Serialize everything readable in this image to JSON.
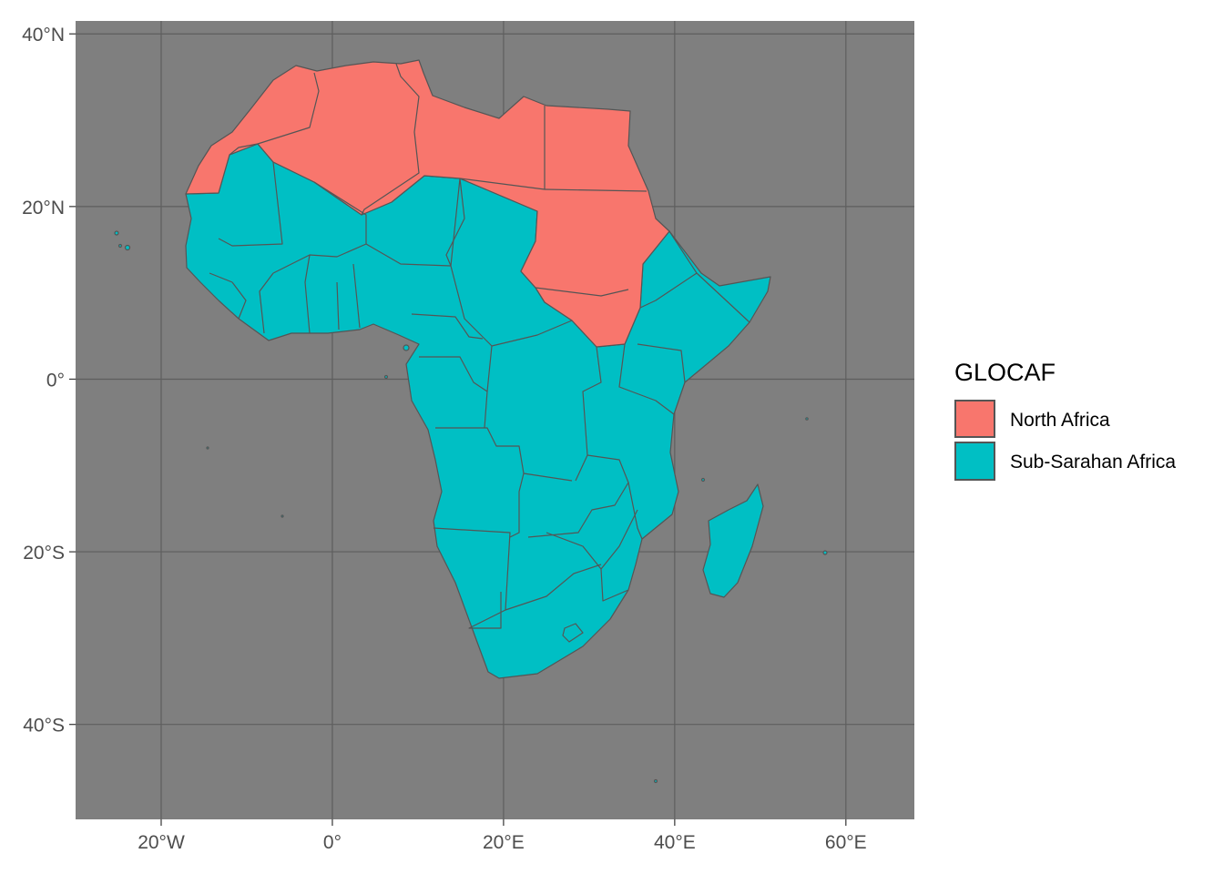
{
  "map": {
    "type": "choropleth",
    "legend": {
      "title": "GLOCAF",
      "position": "right",
      "entries": [
        {
          "label": "North Africa",
          "color": "#F8766D"
        },
        {
          "label": "Sub-Sarahan Africa",
          "color": "#00BFC4"
        }
      ]
    },
    "x_ticks": [
      {
        "value": -20,
        "label": "20°W"
      },
      {
        "value": 0,
        "label": "0°"
      },
      {
        "value": 20,
        "label": "20°E"
      },
      {
        "value": 40,
        "label": "40°E"
      },
      {
        "value": 60,
        "label": "60°E"
      }
    ],
    "y_ticks": [
      {
        "value": 40,
        "label": "40°N"
      },
      {
        "value": 20,
        "label": "20°N"
      },
      {
        "value": 0,
        "label": "0°"
      },
      {
        "value": -20,
        "label": "20°S"
      },
      {
        "value": -40,
        "label": "40°S"
      }
    ],
    "xlim": [
      -30,
      68
    ],
    "ylim": [
      -51,
      41.5
    ],
    "colors": {
      "panel_background": "#7F7F7F",
      "grid": "#5E5E5E",
      "border": "#555555"
    }
  }
}
